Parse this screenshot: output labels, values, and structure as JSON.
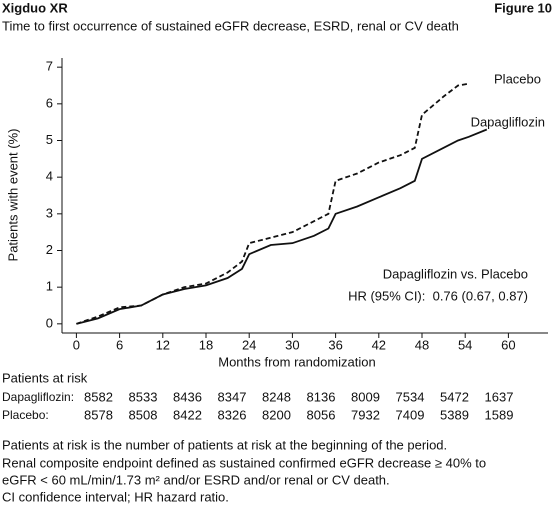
{
  "header": {
    "title": "Xigduo XR",
    "figure": "Figure 10"
  },
  "chart_data": {
    "type": "line",
    "title": "Time to first occurrence of sustained eGFR decrease, ESRD, renal or CV death",
    "x_label": "Months from randomization",
    "y_label": "Patients with event (%)",
    "x": [
      0,
      3,
      6,
      9,
      12,
      15,
      18,
      21,
      23,
      24,
      27,
      30,
      33,
      35,
      36,
      39,
      42,
      45,
      47,
      48,
      51,
      53,
      54.5,
      57
    ],
    "series": [
      {
        "name": "Placebo",
        "color": "#111111",
        "style": "dashed",
        "values": [
          0,
          0.2,
          0.45,
          0.5,
          0.8,
          1.0,
          1.1,
          1.4,
          1.7,
          2.2,
          2.35,
          2.5,
          2.8,
          3.0,
          3.9,
          4.1,
          4.4,
          4.6,
          4.8,
          5.7,
          6.2,
          6.5,
          6.55,
          null
        ]
      },
      {
        "name": "Dapagliflozin",
        "color": "#111111",
        "style": "solid",
        "values": [
          0,
          0.15,
          0.4,
          0.5,
          0.8,
          0.95,
          1.05,
          1.25,
          1.5,
          1.9,
          2.15,
          2.2,
          2.4,
          2.6,
          3.0,
          3.2,
          3.45,
          3.7,
          3.9,
          4.5,
          4.8,
          5.0,
          5.1,
          5.3
        ]
      }
    ],
    "xlim": [
      -2,
      65.5
    ],
    "ylim": [
      -0.25,
      7.25
    ],
    "xticks": [
      0,
      6,
      12,
      18,
      24,
      30,
      36,
      42,
      48,
      54,
      60
    ],
    "yticks": [
      0,
      1,
      2,
      3,
      4,
      5,
      6,
      7
    ],
    "grid": false,
    "annotations": [
      "Dapagliflozin vs. Placebo",
      "HR (95% CI):  0.76 (0.67, 0.87)"
    ]
  },
  "risk_table": {
    "title": "Patients at risk",
    "rows": [
      {
        "label": "Dapagliflozin:",
        "values": [
          8582,
          8533,
          8436,
          8347,
          8248,
          8136,
          8009,
          7534,
          5472,
          1637
        ]
      },
      {
        "label": "Placebo:",
        "values": [
          8578,
          8508,
          8422,
          8326,
          8200,
          8056,
          7932,
          7409,
          5389,
          1589
        ]
      }
    ]
  },
  "footnotes": [
    "Patients at risk is the number of patients at risk at the beginning of the period.",
    "Renal composite endpoint defined as sustained confirmed eGFR decrease ≥ 40% to",
    "eGFR < 60 mL/min/1.73 m² and/or ESRD and/or renal or CV death.",
    "CI confidence interval; HR hazard ratio."
  ]
}
